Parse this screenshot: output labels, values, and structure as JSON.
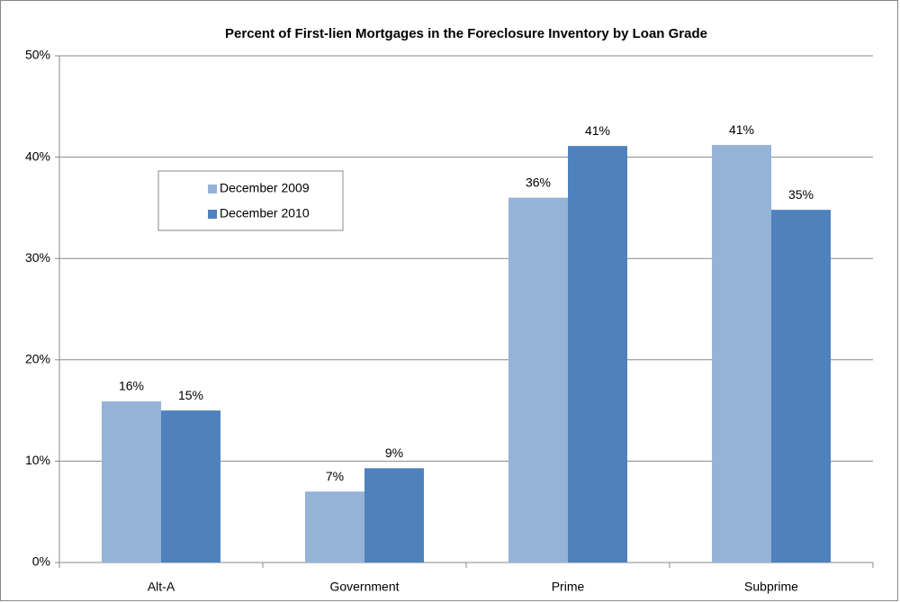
{
  "chart_data": {
    "type": "bar",
    "title": "Percent of First-lien Mortgages in the Foreclosure Inventory by Loan Grade",
    "categories": [
      "Alt-A",
      "Government",
      "Prime",
      "Subprime"
    ],
    "series": [
      {
        "name": "December 2009",
        "color": "#95b3d7",
        "values": [
          15.9,
          7.0,
          36.0,
          41.2
        ],
        "value_labels": [
          "16%",
          "7%",
          "36%",
          "41%"
        ]
      },
      {
        "name": "December 2010",
        "color": "#4f81bd",
        "values": [
          15.0,
          9.3,
          41.1,
          34.8
        ],
        "value_labels": [
          "15%",
          "9%",
          "41%",
          "35%"
        ]
      }
    ],
    "ylim": [
      0,
      50
    ],
    "yticks": [
      {
        "value": 0,
        "label": "0%"
      },
      {
        "value": 10,
        "label": "10%"
      },
      {
        "value": 20,
        "label": "20%"
      },
      {
        "value": 30,
        "label": "30%"
      },
      {
        "value": 40,
        "label": "40%"
      },
      {
        "value": 50,
        "label": "50%"
      }
    ],
    "grid": true,
    "legend": "upper left"
  }
}
